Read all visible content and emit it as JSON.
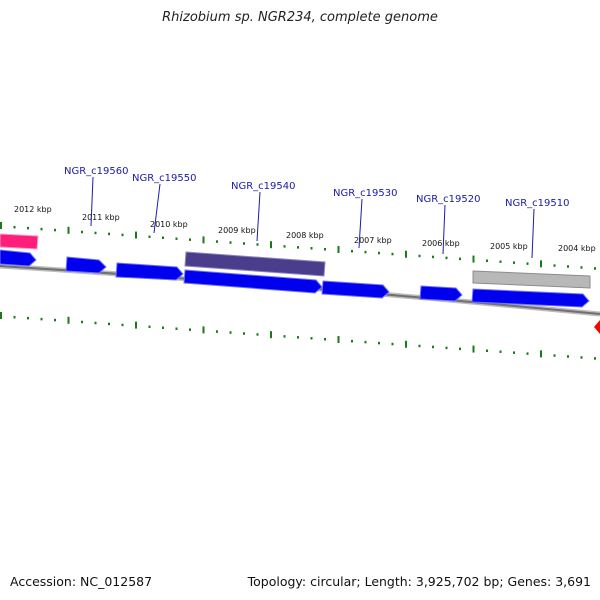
{
  "title": "Rhizobium sp. NGR234, complete genome",
  "footer": {
    "accession": "Accession: NC_012587",
    "topology": "Topology: circular; Length: 3,925,702 bp; Genes: 3,691"
  },
  "colors": {
    "cds": "#0000ee",
    "highlight": "#4a3e8c",
    "pseudo": "#b0b0b0",
    "rna": "#ff1f7a",
    "marker": "#ff0000",
    "tick": "#1a7a1a",
    "backbone": "#8a8a8a",
    "label": "#1a1aaa"
  },
  "scale_labels": [
    "2012 kbp",
    "2011 kbp",
    "2010 kbp",
    "2009 kbp",
    "2008 kbp",
    "2007 kbp",
    "2006 kbp",
    "2005 kbp",
    "2004 kbp"
  ],
  "gene_labels": [
    "NGR_c19560",
    "NGR_c19550",
    "NGR_c19540",
    "NGR_c19530",
    "NGR_c19520",
    "NGR_c19510"
  ]
}
